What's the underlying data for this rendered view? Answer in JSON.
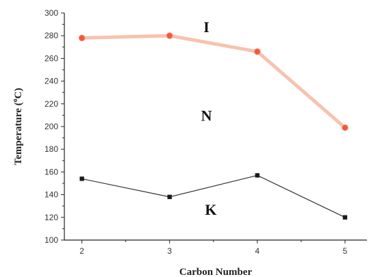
{
  "chart_data": {
    "type": "line",
    "x": [
      2,
      3,
      4,
      5
    ],
    "xlabel": "Carbon Number",
    "ylabel_text": "Temperature (",
    "ylabel_sup": "o",
    "ylabel_unit": "C)",
    "xlim": [
      1.8,
      5.25
    ],
    "ylim": [
      100,
      300
    ],
    "xticks": [
      "2",
      "3",
      "4",
      "5"
    ],
    "yticks": [
      "100",
      "120",
      "140",
      "160",
      "180",
      "200",
      "220",
      "240",
      "260",
      "280",
      "300"
    ],
    "grid": false,
    "series": [
      {
        "values": [
          278,
          280,
          266,
          199
        ],
        "color": "#f05a3c",
        "line_color": "#f7c2ae",
        "marker": "circle"
      },
      {
        "values": [
          154,
          138,
          157,
          120
        ],
        "color": "#1a1a1a",
        "line_color": "#333333",
        "marker": "square"
      }
    ],
    "annotations": [
      {
        "text": "I",
        "x": 3.42,
        "y": 288
      },
      {
        "text": "N",
        "x": 3.42,
        "y": 210
      },
      {
        "text": "K",
        "x": 3.47,
        "y": 127
      }
    ]
  }
}
